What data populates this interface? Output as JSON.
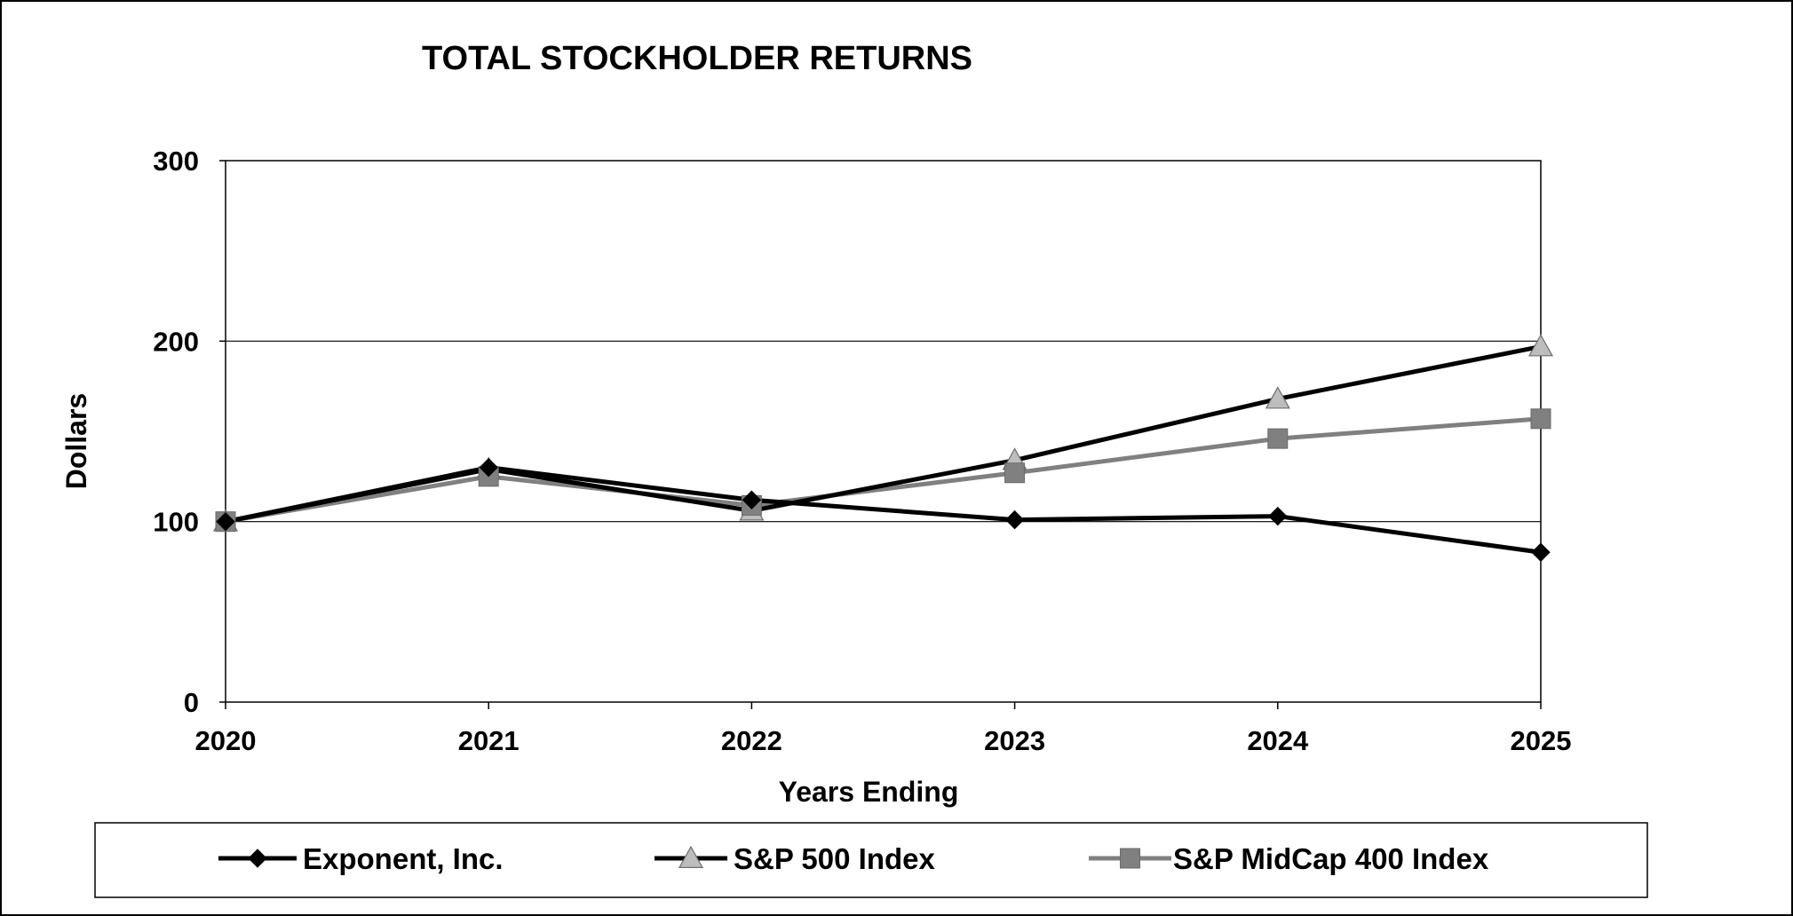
{
  "chart_data": {
    "type": "line",
    "title": "TOTAL STOCKHOLDER RETURNS",
    "xlabel": "Years Ending",
    "ylabel": "Dollars",
    "categories": [
      "2020",
      "2021",
      "2022",
      "2023",
      "2024",
      "2025"
    ],
    "ylim": [
      0,
      300
    ],
    "yticks": [
      0,
      100,
      200,
      300
    ],
    "grid": "horizontal",
    "legend_position": "bottom",
    "series": [
      {
        "name": "Exponent, Inc.",
        "values": [
          100,
          130,
          112,
          101,
          103,
          83
        ],
        "color": "#000000",
        "marker": "diamond",
        "marker_color": "#000000"
      },
      {
        "name": "S&P 500 Index",
        "values": [
          100,
          129,
          106,
          134,
          168,
          197
        ],
        "color": "#000000",
        "marker": "triangle",
        "marker_color": "#bdbdbd"
      },
      {
        "name": "S&P MidCap 400 Index",
        "values": [
          100,
          125,
          109,
          127,
          146,
          157
        ],
        "color": "#808080",
        "marker": "square",
        "marker_color": "#808080"
      }
    ]
  }
}
